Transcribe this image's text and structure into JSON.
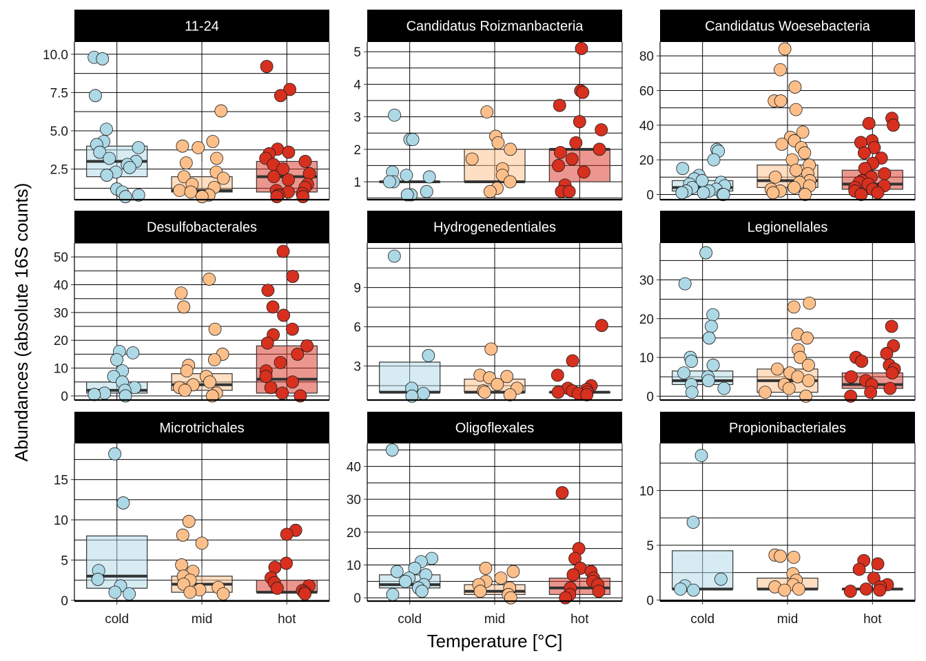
{
  "figure": {
    "xlabel": "Temperature [°C]",
    "ylabel": "Abundances (absolute 16S counts)"
  },
  "colors": {
    "cold": "#add8e6",
    "mid": "#fdbf8a",
    "hot": "#d7301f",
    "strip": "#000000",
    "grid": "#000000",
    "median": "#333333"
  },
  "chart_data": [
    {
      "type": "box",
      "title": "11-24",
      "categories": [
        "cold",
        "mid",
        "hot"
      ],
      "ylim": [
        0.5,
        10.8
      ],
      "yticks": [
        2.5,
        5.0,
        7.5,
        10.0
      ],
      "ytick_labels": [
        "2.5",
        "5.0",
        "7.5",
        "10.0"
      ],
      "boxes": [
        {
          "q1": 2.0,
          "median": 3.0,
          "q3": 4.0,
          "whisker_low": 1.0,
          "whisker_high": 5.0
        },
        {
          "q1": 1.0,
          "median": 1.1,
          "q3": 2.0,
          "whisker_low": 1.0,
          "whisker_high": 3.0
        },
        {
          "q1": 1.0,
          "median": 2.0,
          "q3": 3.0,
          "whisker_low": 1.0,
          "whisker_high": 4.0
        }
      ],
      "points": [
        [
          9.8,
          9.7,
          7.3,
          5.1,
          4.3,
          4.1,
          3.9,
          3.6,
          3.2,
          3.0,
          2.8,
          2.6,
          2.3,
          2.1,
          1.2,
          1.0,
          0.8,
          0.7
        ],
        [
          6.3,
          4.3,
          4.0,
          3.9,
          3.2,
          2.9,
          2.3,
          2.0,
          1.9,
          1.5,
          1.3,
          1.1,
          1.0,
          0.8,
          0.7
        ],
        [
          9.2,
          7.7,
          7.3,
          3.8,
          3.6,
          3.5,
          3.2,
          3.0,
          2.8,
          2.5,
          2.2,
          2.0,
          1.8,
          1.5,
          1.3,
          1.1,
          1.0,
          0.9,
          0.8,
          0.7,
          0.7
        ]
      ]
    },
    {
      "type": "box",
      "title": "Candidatus Roizmanbacteria",
      "categories": [
        "cold",
        "mid",
        "hot"
      ],
      "ylim": [
        0.45,
        5.3
      ],
      "yticks": [
        1,
        2,
        3,
        4,
        5
      ],
      "ytick_labels": [
        "1",
        "2",
        "3",
        "4",
        "5"
      ],
      "boxes": [
        {
          "q1": 1.0,
          "median": 1.0,
          "q3": 1.0,
          "whisker_low": 1.0,
          "whisker_high": 1.0
        },
        {
          "q1": 1.0,
          "median": 1.0,
          "q3": 2.0,
          "whisker_low": 1.0,
          "whisker_high": 3.0
        },
        {
          "q1": 1.0,
          "median": 2.0,
          "q3": 2.0,
          "whisker_low": 1.0,
          "whisker_high": 3.0
        }
      ],
      "points": [
        [
          3.05,
          2.3,
          2.3,
          1.3,
          1.2,
          1.15,
          1.0,
          1.0,
          0.7,
          0.6,
          0.6
        ],
        [
          3.15,
          2.4,
          2.2,
          2.0,
          1.7,
          1.4,
          1.2,
          1.0,
          0.8,
          0.7
        ],
        [
          5.1,
          3.8,
          3.75,
          3.35,
          2.85,
          2.6,
          2.2,
          2.0,
          1.9,
          1.7,
          1.5,
          1.3,
          0.9,
          0.7,
          0.7
        ]
      ]
    },
    {
      "type": "box",
      "title": "Candidatus Woesebacteria",
      "categories": [
        "cold",
        "mid",
        "hot"
      ],
      "ylim": [
        -3,
        88
      ],
      "yticks": [
        0,
        20,
        40,
        60,
        80
      ],
      "ytick_labels": [
        "0",
        "20",
        "40",
        "60",
        "80"
      ],
      "boxes": [
        {
          "q1": 2,
          "median": 4,
          "q3": 8,
          "whisker_low": 0,
          "whisker_high": 15
        },
        {
          "q1": 4,
          "median": 8,
          "q3": 17,
          "whisker_low": 0,
          "whisker_high": 35
        },
        {
          "q1": 3,
          "median": 6,
          "q3": 14,
          "whisker_low": 0,
          "whisker_high": 28
        }
      ],
      "points": [
        [
          26,
          25,
          20,
          15,
          11,
          9,
          8,
          7,
          6,
          5,
          4,
          3,
          2,
          2,
          1,
          1,
          0,
          0
        ],
        [
          84,
          72,
          62,
          54,
          54,
          49,
          36,
          33,
          31,
          29,
          27,
          24,
          20,
          17,
          14,
          12,
          10,
          8,
          7,
          5,
          4,
          3,
          2,
          1,
          0
        ],
        [
          44,
          41,
          40,
          31,
          30,
          27,
          24,
          21,
          18,
          15,
          12,
          10,
          8,
          7,
          6,
          5,
          4,
          3,
          2,
          1,
          0
        ]
      ]
    },
    {
      "type": "box",
      "title": "Desulfobacterales",
      "categories": [
        "cold",
        "mid",
        "hot"
      ],
      "ylim": [
        -1.5,
        55
      ],
      "yticks": [
        0,
        10,
        20,
        30,
        40,
        50
      ],
      "ytick_labels": [
        "0",
        "10",
        "20",
        "30",
        "40",
        "50"
      ],
      "boxes": [
        {
          "q1": 1,
          "median": 2,
          "q3": 5,
          "whisker_low": 0,
          "whisker_high": 9
        },
        {
          "q1": 2,
          "median": 4,
          "q3": 8,
          "whisker_low": 0,
          "whisker_high": 15
        },
        {
          "q1": 1,
          "median": 6,
          "q3": 18,
          "whisker_low": 0,
          "whisker_high": 40
        }
      ],
      "points": [
        [
          16,
          15.5,
          13,
          9,
          7,
          5,
          3,
          2,
          1,
          0.5,
          0
        ],
        [
          42,
          37,
          32,
          24,
          15,
          13,
          11,
          9,
          7,
          5,
          4,
          3,
          2,
          1,
          0
        ],
        [
          52,
          43,
          38,
          32,
          29,
          24,
          22,
          19,
          18,
          15,
          12,
          9,
          7,
          5,
          3,
          1,
          0
        ]
      ]
    },
    {
      "type": "box",
      "title": "Hydrogenedentiales",
      "categories": [
        "cold",
        "mid",
        "hot"
      ],
      "ylim": [
        0.4,
        12.4
      ],
      "yticks": [
        3,
        6,
        9
      ],
      "ytick_labels": [
        "3",
        "6",
        "9"
      ],
      "boxes": [
        {
          "q1": 1.0,
          "median": 1.0,
          "q3": 3.3,
          "whisker_low": 1.0,
          "whisker_high": 11.0
        },
        {
          "q1": 1.0,
          "median": 1.0,
          "q3": 2.0,
          "whisker_low": 1.0,
          "whisker_high": 2.0
        },
        {
          "q1": 1.0,
          "median": 1.0,
          "q3": 1.0,
          "whisker_low": 1.0,
          "whisker_high": 1.0
        }
      ],
      "points": [
        [
          11.4,
          3.8,
          1.3,
          0.9,
          0.7
        ],
        [
          4.3,
          2.3,
          2.2,
          2.1,
          1.6,
          1.3,
          1.1,
          1.0,
          0.8
        ],
        [
          6.1,
          3.4,
          2.3,
          1.5,
          1.3,
          1.2,
          1.1,
          1.0,
          1.0,
          0.9,
          0.8
        ]
      ]
    },
    {
      "type": "box",
      "title": "Legionellales",
      "categories": [
        "cold",
        "mid",
        "hot"
      ],
      "ylim": [
        -1,
        39.5
      ],
      "yticks": [
        0,
        10,
        20,
        30
      ],
      "ytick_labels": [
        "0",
        "10",
        "20",
        "30"
      ],
      "boxes": [
        {
          "q1": 3,
          "median": 4,
          "q3": 6.5,
          "whisker_low": 0,
          "whisker_high": 14
        },
        {
          "q1": 1,
          "median": 4,
          "q3": 7,
          "whisker_low": 0,
          "whisker_high": 16
        },
        {
          "q1": 2,
          "median": 3,
          "q3": 6,
          "whisker_low": 0,
          "whisker_high": 13
        }
      ],
      "points": [
        [
          37,
          29,
          21,
          18,
          15,
          10,
          9,
          8,
          6,
          5,
          4,
          3,
          2,
          1
        ],
        [
          24,
          23,
          16,
          15,
          12,
          10,
          8,
          7,
          6,
          5,
          4,
          3,
          2,
          1,
          0
        ],
        [
          18,
          13,
          11,
          10,
          9,
          8,
          7,
          6,
          5,
          4,
          3,
          2,
          1,
          0
        ]
      ]
    },
    {
      "type": "box",
      "title": "Microtrichales",
      "categories": [
        "cold",
        "mid",
        "hot"
      ],
      "ylim": [
        -0.1,
        19.5
      ],
      "yticks": [
        0,
        5,
        10,
        15
      ],
      "ytick_labels": [
        "0",
        "5",
        "10",
        "15"
      ],
      "boxes": [
        {
          "q1": 1.5,
          "median": 3,
          "q3": 8,
          "whisker_low": 0.5,
          "whisker_high": 12
        },
        {
          "q1": 1,
          "median": 2,
          "q3": 3,
          "whisker_low": 1,
          "whisker_high": 4
        },
        {
          "q1": 1,
          "median": 1,
          "q3": 2.5,
          "whisker_low": 1,
          "whisker_high": 4
        }
      ],
      "points": [
        [
          18.2,
          12.1,
          3.7,
          2.6,
          1.8,
          1.0,
          0.8
        ],
        [
          9.8,
          8.1,
          7.1,
          4.4,
          3.6,
          3.0,
          2.5,
          2.0,
          1.6,
          1.3,
          1.0,
          0.8
        ],
        [
          8.7,
          8.2,
          4.6,
          4.1,
          2.8,
          2.2,
          1.8,
          1.5,
          1.2,
          1.0,
          0.8
        ]
      ]
    },
    {
      "type": "box",
      "title": "Oligoflexales",
      "categories": [
        "cold",
        "mid",
        "hot"
      ],
      "ylim": [
        -1,
        47
      ],
      "yticks": [
        0,
        10,
        20,
        30,
        40
      ],
      "ytick_labels": [
        "0",
        "10",
        "20",
        "30",
        "40"
      ],
      "boxes": [
        {
          "q1": 3,
          "median": 4,
          "q3": 7,
          "whisker_low": 0,
          "whisker_high": 12
        },
        {
          "q1": 1,
          "median": 2,
          "q3": 4,
          "whisker_low": 0,
          "whisker_high": 8
        },
        {
          "q1": 1,
          "median": 3,
          "q3": 6,
          "whisker_low": 0,
          "whisker_high": 12
        }
      ],
      "points": [
        [
          45,
          12,
          11,
          9,
          8,
          7,
          6,
          5,
          4,
          3,
          2,
          1
        ],
        [
          9,
          8,
          6,
          5,
          4,
          3,
          2,
          1,
          0
        ],
        [
          32,
          15,
          12,
          9,
          8,
          7,
          6,
          5,
          4,
          3,
          2,
          1,
          0
        ]
      ]
    },
    {
      "type": "box",
      "title": "Propionibacteriales",
      "categories": [
        "cold",
        "mid",
        "hot"
      ],
      "ylim": [
        -0.1,
        14.3
      ],
      "yticks": [
        0,
        5,
        10
      ],
      "ytick_labels": [
        "0",
        "5",
        "10"
      ],
      "boxes": [
        {
          "q1": 1,
          "median": 1,
          "q3": 4.5,
          "whisker_low": 1,
          "whisker_high": 7
        },
        {
          "q1": 1,
          "median": 1,
          "q3": 2,
          "whisker_low": 1,
          "whisker_high": 4
        },
        {
          "q1": 1,
          "median": 1,
          "q3": 1,
          "whisker_low": 1,
          "whisker_high": 1
        }
      ],
      "points": [
        [
          13.2,
          7.1,
          1.9,
          1.3,
          1.0,
          0.9
        ],
        [
          4.1,
          4.0,
          3.9,
          2.4,
          1.8,
          1.4,
          1.2,
          1.0,
          0.9
        ],
        [
          3.6,
          3.3,
          2.8,
          2.0,
          1.4,
          1.2,
          1.0,
          0.9,
          0.8
        ]
      ]
    }
  ]
}
